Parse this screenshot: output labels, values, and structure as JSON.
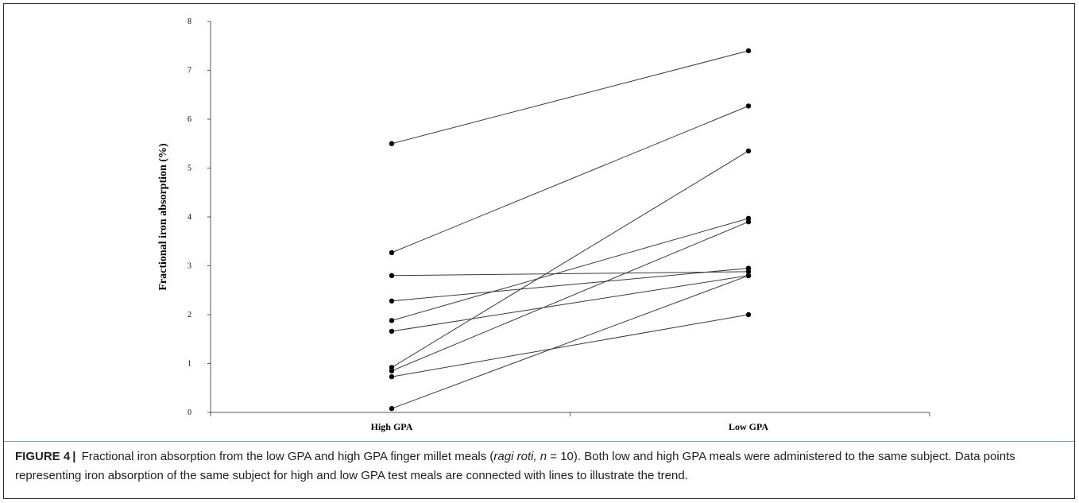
{
  "chart_data": {
    "type": "line",
    "title": "",
    "xlabel": "",
    "ylabel": "Fractional iron absorption (%)",
    "categories": [
      "High GPA",
      "Low GPA"
    ],
    "ylim": [
      0,
      8
    ],
    "yticks": [
      "0",
      "1",
      "2",
      "3",
      "4",
      "5",
      "6",
      "7",
      "8"
    ],
    "grid": false,
    "legend": "none",
    "line_color": "#3a3a3a",
    "marker_color": "#000000",
    "series": [
      {
        "values": [
          5.5,
          7.4
        ]
      },
      {
        "values": [
          3.27,
          6.27
        ]
      },
      {
        "values": [
          2.8,
          2.88
        ]
      },
      {
        "values": [
          2.28,
          2.95
        ]
      },
      {
        "values": [
          1.88,
          3.97
        ]
      },
      {
        "values": [
          1.66,
          2.8
        ]
      },
      {
        "values": [
          0.92,
          5.35
        ]
      },
      {
        "values": [
          0.85,
          3.9
        ]
      },
      {
        "values": [
          0.73,
          2.0
        ]
      },
      {
        "values": [
          0.08,
          2.8
        ]
      }
    ]
  },
  "caption": {
    "label": "FIGURE 4",
    "separator": "|",
    "text_before": "Fractional iron absorption from the low GPA and high GPA finger millet meals (",
    "italic_1": "ragi roti, n",
    "text_middle": " = 10). Both low and high GPA meals were administered to the same subject. Data points representing iron absorption of the same subject for high and low GPA test meals are connected with lines to illustrate the trend."
  }
}
